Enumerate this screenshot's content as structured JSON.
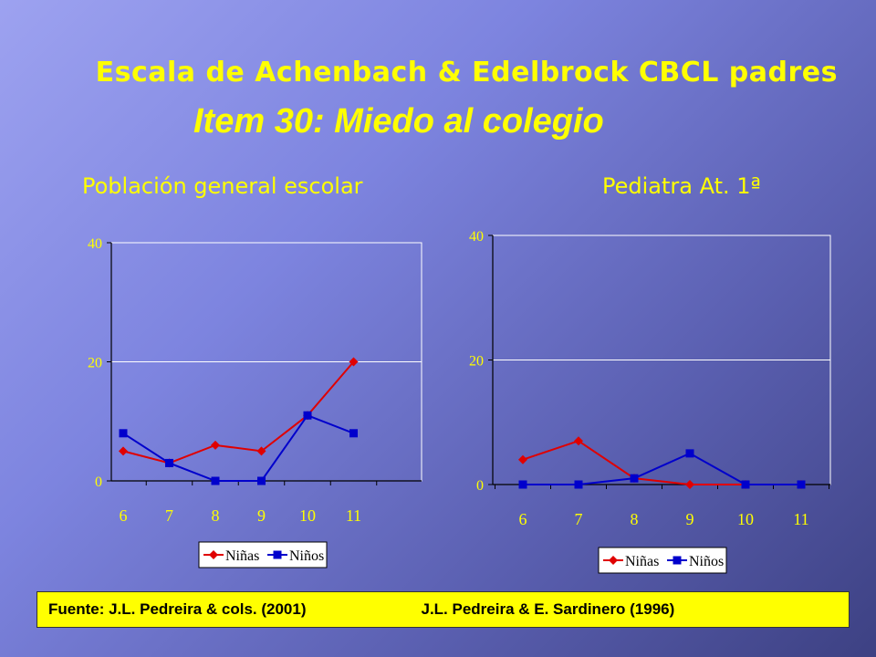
{
  "slide": {
    "title": "Escala de Achenbach & Edelbrock CBCL padres",
    "subtitle": "Item 30: Miedo al colegio",
    "left_heading": "Población general escolar",
    "right_heading": "Pediatra At. 1ª",
    "footer_left": "Fuente: J.L. Pedreira & cols. (2001)",
    "footer_right": "J.L. Pedreira & E. Sardinero (1996)"
  },
  "chart_data": [
    {
      "type": "line",
      "categories": [
        "6",
        "7",
        "8",
        "9",
        "10",
        "11"
      ],
      "series": [
        {
          "name": "Niñas",
          "values": [
            5,
            3,
            6,
            5,
            11,
            20
          ],
          "color": "#e00000",
          "marker": "diamond"
        },
        {
          "name": "Niños",
          "values": [
            8,
            3,
            0,
            0,
            11,
            8
          ],
          "color": "#0000cc",
          "marker": "square"
        }
      ],
      "ylim": [
        0,
        40
      ],
      "yticks": [
        "0",
        "20",
        "40"
      ],
      "grid": true,
      "legend": "bottom"
    },
    {
      "type": "line",
      "categories": [
        "6",
        "7",
        "8",
        "9",
        "10",
        "11"
      ],
      "series": [
        {
          "name": "Niñas",
          "values": [
            4,
            7,
            1,
            0,
            0,
            0
          ],
          "color": "#e00000",
          "marker": "diamond"
        },
        {
          "name": "Niños",
          "values": [
            0,
            0,
            1,
            5,
            0,
            0
          ],
          "color": "#0000cc",
          "marker": "square"
        }
      ],
      "ylim": [
        0,
        40
      ],
      "yticks": [
        "0",
        "20",
        "40"
      ],
      "grid": true,
      "legend": "bottom"
    }
  ]
}
